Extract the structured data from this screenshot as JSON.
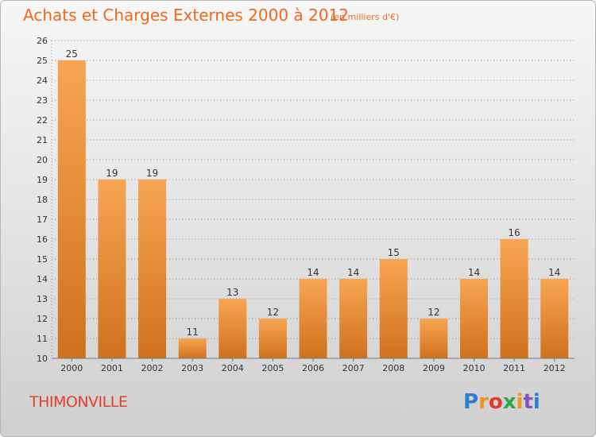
{
  "header": {
    "title": "Achats et Charges Externes 2000 à 2012",
    "subtitle": "(en milliers d'€)"
  },
  "footer": {
    "commune": "THIMONVILLE",
    "logo_text": "Proxiti",
    "logo_colors": [
      "#2f7fd0",
      "#f0941c",
      "#e23a2a",
      "#2aa84a",
      "#f0941c",
      "#8a4fc0",
      "#2f7fd0"
    ]
  },
  "chart_data": {
    "type": "bar",
    "categories": [
      "2000",
      "2001",
      "2002",
      "2003",
      "2004",
      "2005",
      "2006",
      "2007",
      "2008",
      "2009",
      "2010",
      "2011",
      "2012"
    ],
    "values": [
      25,
      19,
      19,
      11,
      13,
      12,
      14,
      14,
      15,
      12,
      14,
      16,
      14
    ],
    "title": "Achats et Charges Externes 2000 à 2012",
    "subtitle": "(en milliers d'€)",
    "xlabel": "",
    "ylabel": "",
    "ylim": [
      10,
      26
    ],
    "yticks": [
      10,
      11,
      12,
      13,
      14,
      15,
      16,
      17,
      18,
      19,
      20,
      21,
      22,
      23,
      24,
      25,
      26
    ],
    "grid": true,
    "data_labels": true,
    "colors": {
      "bar_top": "#f7a552",
      "bar_bottom": "#d0711c",
      "axis_text": "#333333",
      "grid": "#8a8a8a",
      "title": "#ee6a1a"
    }
  }
}
